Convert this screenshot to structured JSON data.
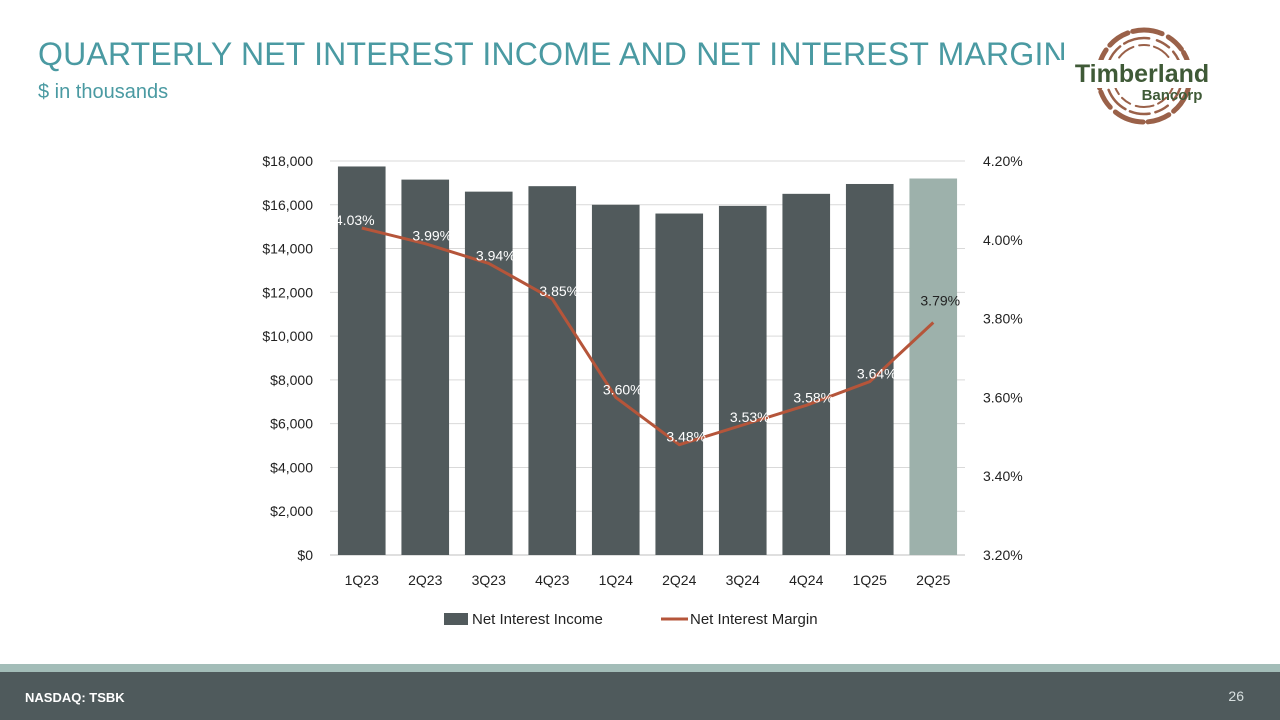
{
  "slide": {
    "title": "QUARTERLY NET INTEREST INCOME AND NET INTEREST MARGIN",
    "subtitle": "$ in thousands",
    "page_number": "26"
  },
  "logo": {
    "line1": "Timberland",
    "line2": "Bancorp",
    "text_color": "#3f5a37",
    "ring_color": "#9a6149"
  },
  "footer": {
    "ticker": "NASDAQ: TSBK",
    "bar_color": "#4f5a5c",
    "stripe_color": "#a3bdb8"
  },
  "chart_data": {
    "type": "bar",
    "title": "",
    "categories": [
      "1Q23",
      "2Q23",
      "3Q23",
      "4Q23",
      "1Q24",
      "2Q24",
      "3Q24",
      "4Q24",
      "1Q25",
      "2Q25"
    ],
    "series": [
      {
        "name": "Net Interest Income",
        "type": "bar",
        "axis": "left",
        "values": [
          17750,
          17150,
          16600,
          16850,
          16000,
          15600,
          15950,
          16500,
          16950,
          17200
        ],
        "color": "#515a5c",
        "highlight_color": "#9db1ab",
        "highlight_index": 9
      },
      {
        "name": "Net Interest Margin",
        "type": "line",
        "axis": "right",
        "values": [
          4.03,
          3.99,
          3.94,
          3.85,
          3.6,
          3.48,
          3.53,
          3.58,
          3.64,
          3.79
        ],
        "labels": [
          "4.03%",
          "3.99%",
          "3.94%",
          "3.85%",
          "3.60%",
          "3.48%",
          "3.53%",
          "3.58%",
          "3.64%",
          "3.79%"
        ],
        "color": "#b5553a"
      }
    ],
    "y_left": {
      "min": 0,
      "max": 18000,
      "ticks": [
        0,
        2000,
        4000,
        6000,
        8000,
        10000,
        12000,
        14000,
        16000,
        18000
      ],
      "tick_labels": [
        "$0",
        "$2,000",
        "$4,000",
        "$6,000",
        "$8,000",
        "$10,000",
        "$12,000",
        "$14,000",
        "$16,000",
        "$18,000"
      ]
    },
    "y_right": {
      "min": 3.2,
      "max": 4.2,
      "ticks": [
        3.2,
        3.4,
        3.6,
        3.8,
        4.0,
        4.2
      ],
      "tick_labels": [
        "3.20%",
        "3.40%",
        "3.60%",
        "3.80%",
        "4.00%",
        "4.20%"
      ]
    },
    "grid": true,
    "legend": "bottom"
  }
}
